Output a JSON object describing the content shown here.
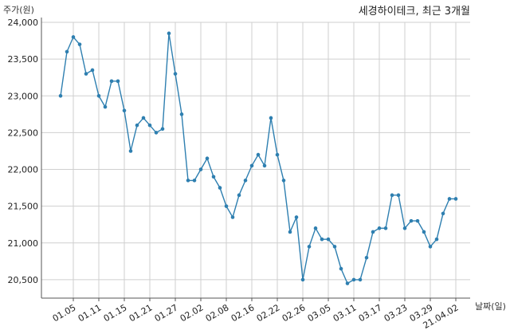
{
  "chart_data": {
    "type": "line",
    "title": "세경하이테크, 최근 3개월",
    "ylabel": "주가(원)",
    "xlabel": "날짜(일)",
    "ylim": [
      20250,
      24000
    ],
    "yticks": [
      20500,
      21000,
      21500,
      22000,
      22500,
      23000,
      23500,
      24000
    ],
    "ytick_labels": [
      "20,500",
      "21,000",
      "21,500",
      "22,000",
      "22,500",
      "23,000",
      "23,500",
      "24,000"
    ],
    "xtick_labels": [
      "01.05",
      "01.11",
      "01.15",
      "01.21",
      "01.27",
      "02.02",
      "02.08",
      "02.16",
      "02.22",
      "02.26",
      "03.05",
      "03.11",
      "03.17",
      "03.23",
      "03.29",
      "21.04.02"
    ],
    "xtick_positions": [
      2,
      6,
      10,
      14,
      18,
      22,
      26,
      30,
      34,
      38,
      42,
      46,
      50,
      54,
      58,
      62
    ],
    "grid": true,
    "color": "#2e7fb0",
    "series": [
      {
        "name": "",
        "values": [
          23000,
          23600,
          23800,
          23700,
          23300,
          23350,
          23000,
          22850,
          23200,
          23200,
          22800,
          22250,
          22600,
          22700,
          22600,
          22500,
          22550,
          23850,
          23300,
          22750,
          21850,
          21850,
          22000,
          22150,
          21900,
          21750,
          21500,
          21350,
          21650,
          21850,
          22050,
          22200,
          22050,
          22700,
          22200,
          21850,
          21150,
          21350,
          20500,
          20950,
          21200,
          21050,
          21050,
          20950,
          20650,
          20450,
          20500,
          20500,
          20800,
          21150,
          21200,
          21200,
          21650,
          21650,
          21200,
          21300,
          21300,
          21150,
          20950,
          21050,
          21400,
          21600,
          21600
        ]
      }
    ]
  }
}
